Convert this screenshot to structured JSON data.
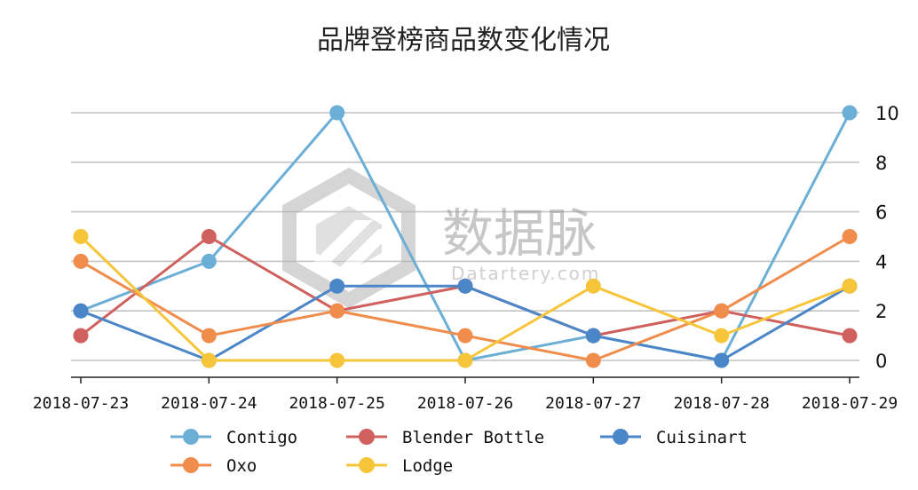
{
  "chart_data": {
    "type": "line",
    "title": "品牌登榜商品数变化情况",
    "categories": [
      "2018-07-23",
      "2018-07-24",
      "2018-07-25",
      "2018-07-26",
      "2018-07-27",
      "2018-07-28",
      "2018-07-29"
    ],
    "ylim": [
      0,
      10
    ],
    "yticks": [
      "0",
      "2",
      "4",
      "6",
      "8",
      "10"
    ],
    "y_axis_side": "right",
    "grid": true,
    "legend_position": "bottom",
    "series": [
      {
        "name": "Contigo",
        "color": "#6baed6",
        "values": [
          2,
          4,
          10,
          0,
          1,
          0,
          10
        ]
      },
      {
        "name": "Blender Bottle",
        "color": "#d0605e",
        "values": [
          1,
          5,
          2,
          3,
          1,
          2,
          1
        ]
      },
      {
        "name": "Cuisinart",
        "color": "#4a86c8",
        "values": [
          2,
          0,
          3,
          3,
          1,
          0,
          3
        ]
      },
      {
        "name": "Oxo",
        "color": "#f08c4c",
        "values": [
          4,
          1,
          2,
          1,
          0,
          2,
          5
        ]
      },
      {
        "name": "Lodge",
        "color": "#f7c53a",
        "values": [
          5,
          0,
          0,
          0,
          3,
          1,
          3
        ]
      }
    ]
  },
  "watermark": {
    "text_cn": "数据脉",
    "text_en": "Datartery.com"
  }
}
